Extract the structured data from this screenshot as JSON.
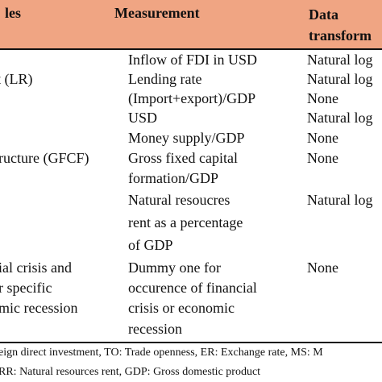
{
  "header": {
    "variables": "les",
    "measurement": "Measurement",
    "data_line1": "Data",
    "data_line2": "transform"
  },
  "rows": [
    {
      "variable": "",
      "measurement": "Inflow of FDI in USD",
      "transform": "Natural log"
    },
    {
      "variable": "t (LR)",
      "measurement": "Lending rate",
      "transform": "Natural log"
    },
    {
      "variable": "",
      "measurement": "(Import+export)/GDP",
      "transform": "None"
    },
    {
      "variable": "",
      "measurement": "USD",
      "transform": "Natural log"
    },
    {
      "variable": "",
      "measurement": "Money supply/GDP",
      "transform": "None"
    },
    {
      "variable": "ructure (GFCF)",
      "measurement": "Gross fixed capital",
      "transform": "None"
    },
    {
      "variable": "",
      "measurement": "formation/GDP",
      "transform": ""
    },
    {
      "variable": "",
      "measurement": "Natural resoucres",
      "transform": "Natural log"
    },
    {
      "variable": "",
      "measurement": "rent as a percentage",
      "transform": ""
    },
    {
      "variable": "",
      "measurement": "of GDP",
      "transform": ""
    },
    {
      "variable": "ial crisis and",
      "measurement": "Dummy one for",
      "transform": "None"
    },
    {
      "variable": "r specific",
      "measurement": "occurence of financial",
      "transform": ""
    },
    {
      "variable": "mic recession",
      "measurement": "crisis or economic",
      "transform": ""
    },
    {
      "variable": "",
      "measurement": "recession",
      "transform": ""
    }
  ],
  "footnote": {
    "line1": "eign direct investment, TO: Trade openness, ER: Exchange rate, MS: M",
    "line2": "RR: Natural resources rent, GDP: Gross domestic product"
  },
  "colors": {
    "header_bg": "#f0a583",
    "rule": "#111111"
  }
}
